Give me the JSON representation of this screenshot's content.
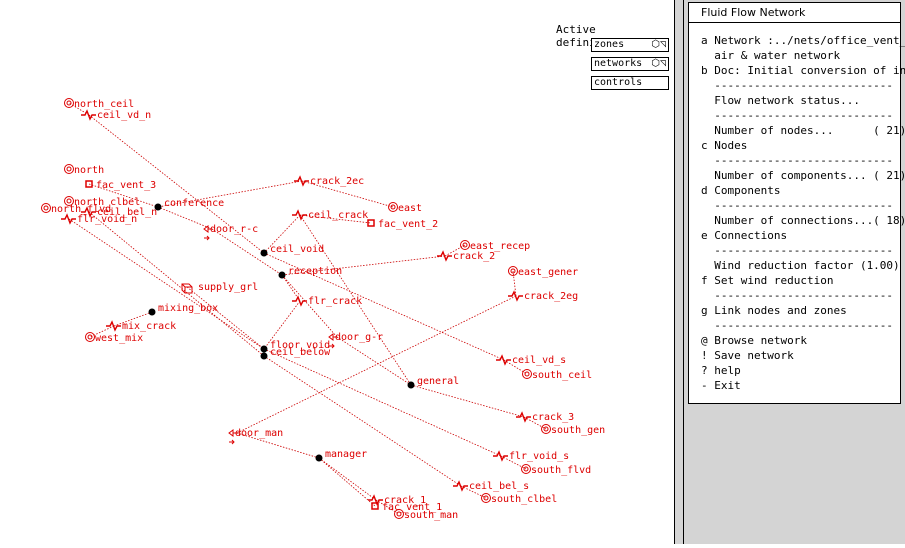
{
  "definitions": {
    "title": "Active definitions",
    "items": [
      {
        "label": "zones",
        "icon": "cube-icon"
      },
      {
        "label": "networks",
        "icon": "cube-icon"
      },
      {
        "label": "controls",
        "icon": ""
      }
    ]
  },
  "menu": {
    "title": "Fluid Flow Network",
    "lines": [
      "a Network :../nets/office_vent_n",
      "  air & water network",
      "b Doc: Initial conversion of in",
      "  ---------------------------",
      "  Flow network status...",
      "  ---------------------------",
      "  Number of nodes...      ( 21)",
      "c Nodes",
      "  ---------------------------",
      "  Number of components... ( 21)",
      "d Components",
      "  ---------------------------",
      "  Number of connections...( 18)",
      "e Connections",
      "  ---------------------------",
      "  Wind reduction factor (1.00)",
      "f Set wind reduction",
      "  ---------------------------",
      "g Link nodes and zones",
      "  ---------------------------",
      "@ Browse network",
      "! Save network",
      "? help",
      "- Exit"
    ]
  },
  "network": {
    "colors": {
      "component": "#dd0000",
      "node": "#000000",
      "link": "#cc0000"
    },
    "internal_nodes": [
      "conference",
      "ceil_void",
      "reception",
      "mixing_box",
      "floor_void",
      "ceil_below",
      "general",
      "manager"
    ],
    "boundary_nodes": [
      "north_ceil",
      "north",
      "north_clbel",
      "north_flvd",
      "east",
      "east_recep",
      "east_gener",
      "west_mix",
      "south_ceil",
      "south_gen",
      "south_flvd",
      "south_clbel",
      "south_man"
    ],
    "components": [
      "ceil_vd_n",
      "fac_vent_3",
      "ceil_bel_n",
      "flr_void_n",
      "crack_2ec",
      "ceil_crack",
      "fac_vent_2",
      "door_r-c",
      "crack_2",
      "crack_2eg",
      "supply_grl",
      "flr_crack",
      "mix_crack",
      "door_g-r",
      "ceil_vd_s",
      "crack_3",
      "door_man",
      "flr_void_s",
      "ceil_bel_s",
      "crack_1",
      "fac_vent_1"
    ]
  }
}
